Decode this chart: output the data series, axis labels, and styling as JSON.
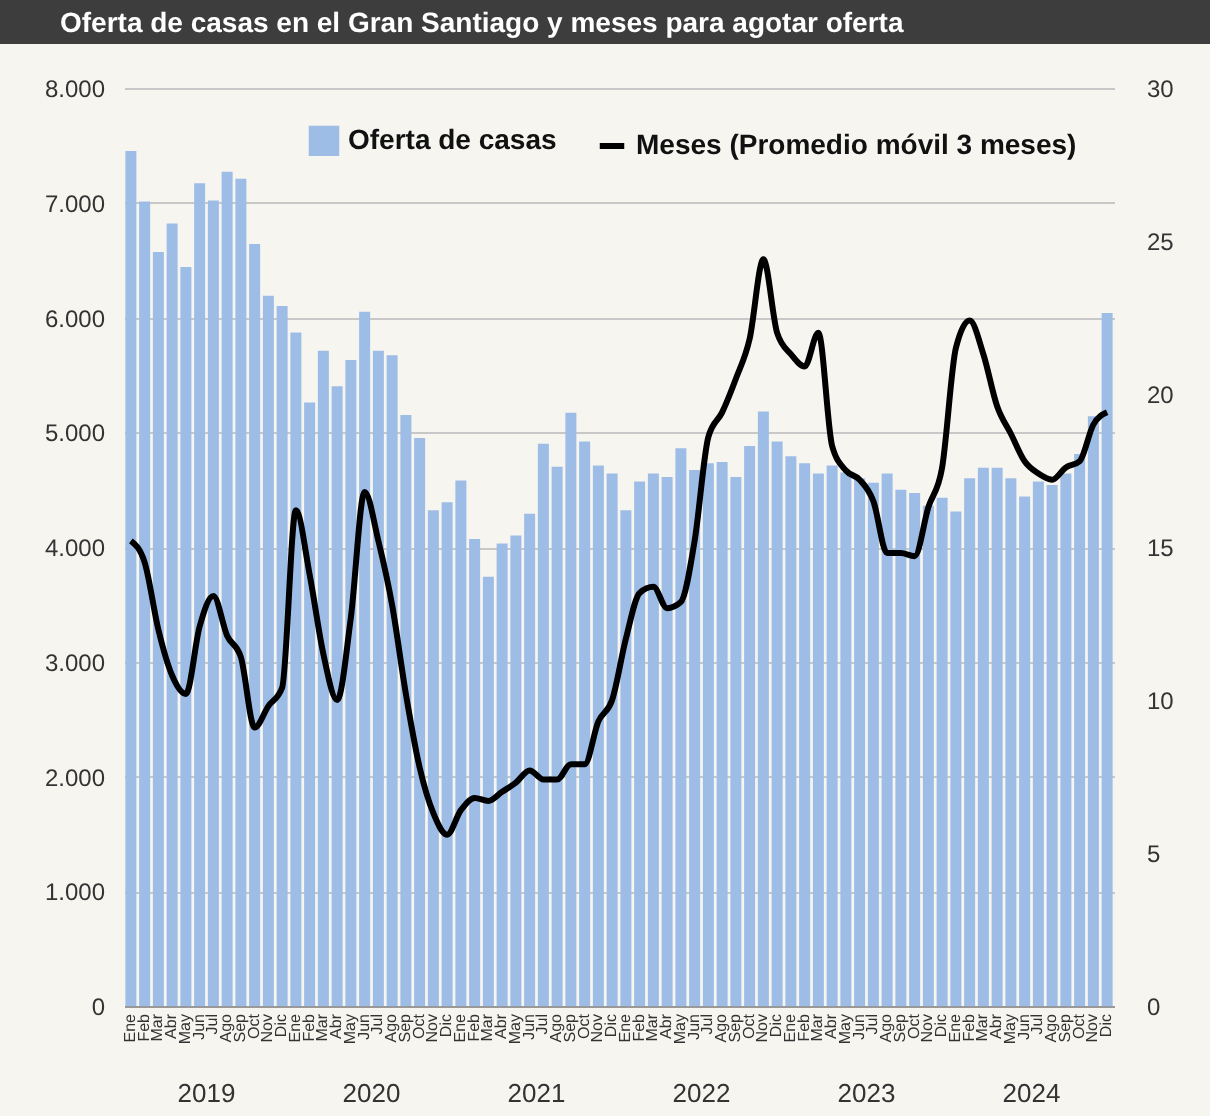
{
  "chart_data": {
    "type": "bar",
    "title": "Oferta de casas en el Gran Santiago y meses para agotar oferta",
    "categories": [
      "Ene",
      "Feb",
      "Mar",
      "Abr",
      "May",
      "Jun",
      "Jul",
      "Ago",
      "Sep",
      "Oct",
      "Nov",
      "Dic",
      "Ene",
      "Feb",
      "Mar",
      "Abr",
      "May",
      "Jun",
      "Jul",
      "Ago",
      "Sep",
      "Oct",
      "Nov",
      "Dic",
      "Ene",
      "Feb",
      "Mar",
      "Abr",
      "May",
      "Jun",
      "Jul",
      "Ago",
      "Sep",
      "Oct",
      "Nov",
      "Dic",
      "Ene",
      "Feb",
      "Mar",
      "Abr",
      "May",
      "Jun",
      "Jul",
      "Ago",
      "Sep",
      "Oct",
      "Nov",
      "Dic",
      "Ene",
      "Feb",
      "Mar",
      "Abr",
      "May",
      "Jun",
      "Jul",
      "Ago",
      "Sep",
      "Oct",
      "Nov",
      "Dic",
      "Ene",
      "Feb",
      "Mar",
      "Abr",
      "May",
      "Jun",
      "Jul",
      "Ago",
      "Sep",
      "Oct",
      "Nov",
      "Dic"
    ],
    "series": [
      {
        "name": "Oferta de casas",
        "color": "#9dbde6",
        "values": [
          7450,
          7010,
          6570,
          6820,
          6440,
          7170,
          7020,
          7270,
          7210,
          6640,
          6190,
          6100,
          5870,
          5260,
          5710,
          5400,
          5630,
          6050,
          5710,
          5670,
          5150,
          4950,
          4320,
          4390,
          4580,
          4070,
          3740,
          4030,
          4100,
          4290,
          4900,
          4700,
          5170,
          4920,
          4710,
          4640,
          4320,
          4570,
          4640,
          4610,
          4860,
          4670,
          4730,
          4740,
          4610,
          4880,
          5180,
          4920,
          4790,
          4730,
          4640,
          4710,
          4650,
          4600,
          4560,
          4640,
          4500,
          4470,
          4360,
          4430,
          4310,
          4600,
          4690,
          4690,
          4600,
          4440,
          4570,
          4540,
          4640,
          4810,
          5140,
          6040
        ]
      },
      {
        "name": "Meses (Promedio móvil 3 meses)",
        "type": "line",
        "axis": "y2",
        "color": "#000000",
        "values": [
          15.2,
          14.5,
          12.3,
          10.8,
          10.2,
          12.4,
          13.4,
          12.1,
          11.4,
          9.1,
          9.8,
          10.4,
          16.2,
          14.1,
          11.5,
          10.0,
          12.7,
          16.8,
          15.2,
          13.1,
          10.2,
          7.8,
          6.3,
          5.6,
          6.4,
          6.8,
          6.7,
          7.0,
          7.3,
          7.7,
          7.4,
          7.4,
          7.9,
          7.9,
          9.3,
          10.0,
          12.0,
          13.5,
          13.7,
          13.0,
          13.2,
          15.2,
          18.6,
          19.4,
          20.5,
          21.8,
          24.4,
          22.0,
          21.3,
          20.9,
          22.0,
          18.3,
          17.5,
          17.2,
          16.5,
          14.8,
          14.8,
          14.7,
          16.3,
          17.6,
          21.5,
          22.4,
          21.3,
          19.6,
          18.7,
          17.8,
          17.4,
          17.2,
          17.6,
          17.8,
          19.0,
          19.4
        ]
      }
    ],
    "ylim": [
      0,
      8000
    ],
    "yticks": [
      0,
      {
        "value": 1000,
        "label": "1.000"
      },
      {
        "value": 2000,
        "label": "2.000"
      },
      {
        "value": 3000,
        "label": "3.000"
      },
      {
        "value": 4000,
        "label": "4.000"
      },
      {
        "value": 5000,
        "label": "5.000"
      },
      {
        "value": 6000,
        "label": "6.000"
      },
      {
        "value": 7000,
        "label": "7.000"
      },
      {
        "value": 8000,
        "label": "8.000"
      }
    ],
    "y2lim": [
      0,
      30
    ],
    "y2ticks": [
      0,
      5,
      10,
      15,
      20,
      25,
      30
    ],
    "grid": "y",
    "legend": "top right",
    "annotations": [
      "2019",
      "2020",
      "2021",
      "2022",
      "2023",
      "2024"
    ]
  }
}
